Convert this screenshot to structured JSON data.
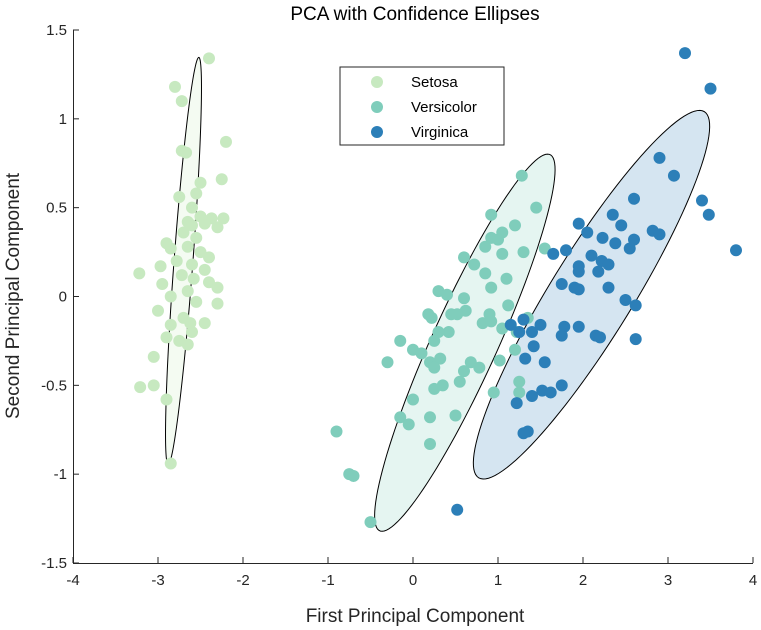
{
  "chart_data": {
    "type": "scatter",
    "title": "PCA with Confidence Ellipses",
    "xlabel": "First Principal Component",
    "ylabel": "Second Principal Component",
    "xlim": [
      -4,
      4
    ],
    "ylim": [
      -1.5,
      1.5
    ],
    "xticks": [
      "-4",
      "-3",
      "-2",
      "-1",
      "0",
      "1",
      "2",
      "3",
      "4"
    ],
    "yticks": [
      "1.5",
      "1",
      "0.5",
      "0",
      "-0.5",
      "-1",
      "-1.5"
    ],
    "grid": false,
    "legend_position": "top-center",
    "series": [
      {
        "name": "Setosa",
        "color": "#c7e9c0",
        "ellipse": {
          "cx": -2.7,
          "cy": 0.2,
          "major_half": 1.16,
          "minor_half": 0.11,
          "angle_deg": 81
        },
        "points": [
          [
            -2.4,
            1.34
          ],
          [
            -2.8,
            1.18
          ],
          [
            -2.72,
            1.1
          ],
          [
            -2.2,
            0.87
          ],
          [
            -2.72,
            0.82
          ],
          [
            -2.67,
            0.81
          ],
          [
            -2.25,
            0.66
          ],
          [
            -2.5,
            0.64
          ],
          [
            -2.55,
            0.58
          ],
          [
            -2.75,
            0.56
          ],
          [
            -2.6,
            0.5
          ],
          [
            -2.5,
            0.45
          ],
          [
            -2.37,
            0.44
          ],
          [
            -2.23,
            0.44
          ],
          [
            -2.65,
            0.42
          ],
          [
            -2.45,
            0.41
          ],
          [
            -2.6,
            0.4
          ],
          [
            -2.3,
            0.39
          ],
          [
            -2.7,
            0.36
          ],
          [
            -2.55,
            0.33
          ],
          [
            -2.9,
            0.3
          ],
          [
            -2.65,
            0.28
          ],
          [
            -2.85,
            0.27
          ],
          [
            -2.5,
            0.25
          ],
          [
            -2.4,
            0.22
          ],
          [
            -2.78,
            0.2
          ],
          [
            -2.6,
            0.18
          ],
          [
            -2.97,
            0.17
          ],
          [
            -2.45,
            0.15
          ],
          [
            -3.22,
            0.13
          ],
          [
            -2.72,
            0.12
          ],
          [
            -2.58,
            0.1
          ],
          [
            -2.4,
            0.08
          ],
          [
            -2.3,
            0.05
          ],
          [
            -2.95,
            0.07
          ],
          [
            -2.65,
            0.03
          ],
          [
            -2.85,
            0.0
          ],
          [
            -2.55,
            -0.03
          ],
          [
            -2.3,
            -0.04
          ],
          [
            -3.0,
            -0.08
          ],
          [
            -2.7,
            -0.12
          ],
          [
            -2.62,
            -0.15
          ],
          [
            -2.45,
            -0.15
          ],
          [
            -2.85,
            -0.16
          ],
          [
            -2.6,
            -0.2
          ],
          [
            -2.9,
            -0.23
          ],
          [
            -2.75,
            -0.25
          ],
          [
            -2.65,
            -0.27
          ],
          [
            -3.05,
            -0.34
          ],
          [
            -3.05,
            -0.5
          ],
          [
            -3.21,
            -0.51
          ],
          [
            -2.9,
            -0.58
          ],
          [
            -2.85,
            -0.94
          ]
        ]
      },
      {
        "name": "Versicolor",
        "color": "#7fcdbb",
        "ellipse": {
          "cx": 0.61,
          "cy": -0.26,
          "major_half": 1.47,
          "minor_half": 0.305,
          "angle_deg": 45
        },
        "points": [
          [
            1.28,
            0.68
          ],
          [
            1.45,
            0.5
          ],
          [
            0.92,
            0.46
          ],
          [
            1.2,
            0.4
          ],
          [
            1.05,
            0.36
          ],
          [
            0.92,
            0.33
          ],
          [
            1.0,
            0.32
          ],
          [
            0.85,
            0.28
          ],
          [
            1.55,
            0.27
          ],
          [
            1.3,
            0.25
          ],
          [
            1.05,
            0.24
          ],
          [
            0.6,
            0.22
          ],
          [
            0.72,
            0.18
          ],
          [
            0.85,
            0.13
          ],
          [
            1.1,
            0.1
          ],
          [
            0.92,
            0.05
          ],
          [
            0.3,
            0.03
          ],
          [
            0.4,
            0.01
          ],
          [
            0.6,
            -0.01
          ],
          [
            1.12,
            -0.05
          ],
          [
            0.62,
            -0.08
          ],
          [
            0.9,
            -0.1
          ],
          [
            0.18,
            -0.1
          ],
          [
            0.52,
            -0.1
          ],
          [
            0.45,
            -0.1
          ],
          [
            0.22,
            -0.12
          ],
          [
            1.35,
            -0.12
          ],
          [
            0.82,
            -0.15
          ],
          [
            0.92,
            -0.14
          ],
          [
            0.42,
            -0.2
          ],
          [
            1.05,
            -0.18
          ],
          [
            1.22,
            -0.2
          ],
          [
            0.3,
            -0.2
          ],
          [
            -0.15,
            -0.25
          ],
          [
            0.25,
            -0.25
          ],
          [
            1.2,
            -0.3
          ],
          [
            0.0,
            -0.3
          ],
          [
            0.1,
            -0.32
          ],
          [
            0.32,
            -0.35
          ],
          [
            0.68,
            -0.37
          ],
          [
            -0.3,
            -0.37
          ],
          [
            1.02,
            -0.36
          ],
          [
            0.2,
            -0.37
          ],
          [
            0.78,
            -0.4
          ],
          [
            0.25,
            -0.4
          ],
          [
            0.6,
            -0.42
          ],
          [
            0.55,
            -0.48
          ],
          [
            1.25,
            -0.48
          ],
          [
            0.35,
            -0.5
          ],
          [
            0.25,
            -0.52
          ],
          [
            0.0,
            -0.58
          ],
          [
            0.95,
            -0.54
          ],
          [
            1.25,
            -0.54
          ],
          [
            0.5,
            -0.67
          ],
          [
            -0.15,
            -0.68
          ],
          [
            0.2,
            -0.68
          ],
          [
            -0.05,
            -0.72
          ],
          [
            -0.9,
            -0.76
          ],
          [
            0.2,
            -0.83
          ],
          [
            -0.75,
            -1.0
          ],
          [
            -0.7,
            -1.01
          ],
          [
            -0.5,
            -1.27
          ]
        ]
      },
      {
        "name": "Virginica",
        "color": "#2c7fb8",
        "ellipse": {
          "cx": 2.1,
          "cy": 0.01,
          "major_half": 1.7,
          "minor_half": 0.345,
          "angle_deg": 36
        },
        "points": [
          [
            3.2,
            1.37
          ],
          [
            3.5,
            1.17
          ],
          [
            2.9,
            0.78
          ],
          [
            3.07,
            0.68
          ],
          [
            2.6,
            0.55
          ],
          [
            3.4,
            0.54
          ],
          [
            2.35,
            0.46
          ],
          [
            3.48,
            0.46
          ],
          [
            1.95,
            0.41
          ],
          [
            2.45,
            0.4
          ],
          [
            2.82,
            0.37
          ],
          [
            2.9,
            0.35
          ],
          [
            2.05,
            0.36
          ],
          [
            2.23,
            0.33
          ],
          [
            2.6,
            0.32
          ],
          [
            2.38,
            0.3
          ],
          [
            2.55,
            0.27
          ],
          [
            1.8,
            0.26
          ],
          [
            3.8,
            0.26
          ],
          [
            1.65,
            0.24
          ],
          [
            2.22,
            0.2
          ],
          [
            2.1,
            0.23
          ],
          [
            2.3,
            0.18
          ],
          [
            1.95,
            0.17
          ],
          [
            2.18,
            0.14
          ],
          [
            1.95,
            0.14
          ],
          [
            1.75,
            0.07
          ],
          [
            1.9,
            0.05
          ],
          [
            1.95,
            0.04
          ],
          [
            2.3,
            0.05
          ],
          [
            2.62,
            -0.05
          ],
          [
            2.5,
            -0.02
          ],
          [
            1.78,
            -0.17
          ],
          [
            1.3,
            -0.13
          ],
          [
            1.15,
            -0.16
          ],
          [
            1.5,
            -0.16
          ],
          [
            1.95,
            -0.17
          ],
          [
            1.25,
            -0.2
          ],
          [
            1.4,
            -0.2
          ],
          [
            2.15,
            -0.22
          ],
          [
            2.2,
            -0.23
          ],
          [
            2.62,
            -0.24
          ],
          [
            1.75,
            -0.22
          ],
          [
            1.42,
            -0.28
          ],
          [
            1.32,
            -0.35
          ],
          [
            1.55,
            -0.37
          ],
          [
            1.75,
            -0.5
          ],
          [
            1.52,
            -0.53
          ],
          [
            1.62,
            -0.54
          ],
          [
            1.4,
            -0.56
          ],
          [
            1.22,
            -0.6
          ],
          [
            1.35,
            -0.76
          ],
          [
            1.3,
            -0.77
          ],
          [
            0.52,
            -1.2
          ]
        ]
      }
    ]
  }
}
